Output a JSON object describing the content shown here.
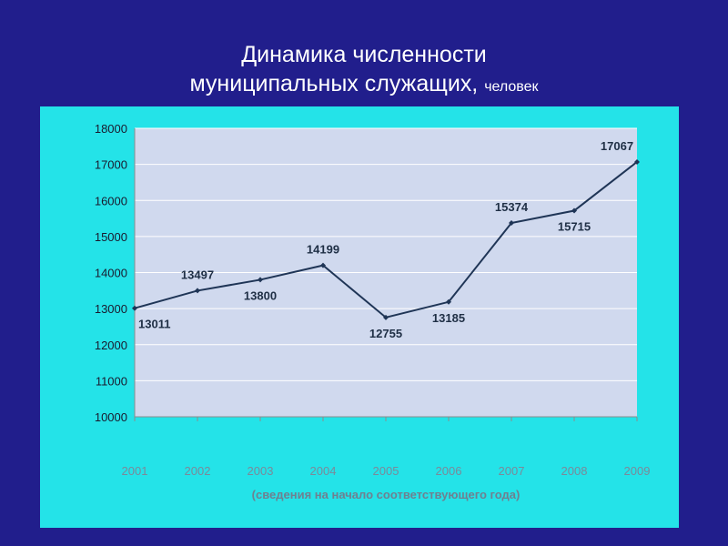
{
  "slide": {
    "title_line1": "Динамика численности",
    "title_line2": "муниципальных служащих,",
    "title_unit": "человек"
  },
  "chart_data": {
    "type": "line",
    "title": "Динамика численности муниципальных служащих, человек",
    "xlabel": "(сведения на начало соответствующего года)",
    "ylabel": "",
    "categories": [
      "2001",
      "2002",
      "2003",
      "2004",
      "2005",
      "2006",
      "2007",
      "2008",
      "2009"
    ],
    "series": [
      {
        "values": [
          13011,
          13497,
          13800,
          14199,
          12755,
          13185,
          15374,
          15715,
          17067
        ]
      }
    ],
    "ylim": [
      10000,
      18000
    ],
    "yticks": [
      10000,
      11000,
      12000,
      13000,
      14000,
      15000,
      16000,
      17000,
      18000
    ],
    "grid": true,
    "legend": "none",
    "data_labels": true,
    "colors": {
      "line": "#1f3556",
      "plot_bg": "#d0d9ee",
      "panel_bg": "#24e3e8",
      "gridline": "#ffffff"
    }
  }
}
